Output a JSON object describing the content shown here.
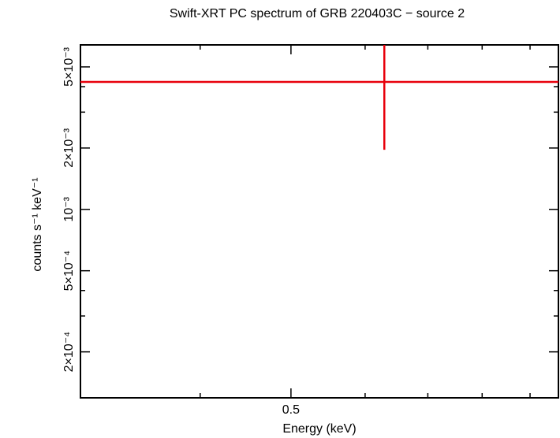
{
  "chart_data": {
    "type": "scatter",
    "title": "Swift-XRT PC spectrum of GRB 220403C − source 2",
    "x_label": "Energy (keV)",
    "y_label": "counts s⁻¹ keV⁻¹",
    "x_log": true,
    "y_log": true,
    "xlim": [
      0.298,
      0.965
    ],
    "ylim": [
      0.000119,
      0.00641
    ],
    "xticks": [
      0.5
    ],
    "xminor": [
      0.4,
      0.6,
      0.7,
      0.8,
      0.9
    ],
    "yticks": [
      {
        "value": 0.005,
        "label": "5×10⁻³"
      },
      {
        "value": 0.002,
        "label": "2×10⁻³"
      },
      {
        "value": 0.001,
        "label": "10⁻³"
      },
      {
        "value": 0.0005,
        "label": "5×10⁻⁴"
      },
      {
        "value": 0.0002,
        "label": "2×10⁻⁴"
      }
    ],
    "yminor": [
      0.004,
      0.003,
      0.0004,
      0.0003
    ],
    "series": [
      {
        "color": "#e8000b",
        "x": [
          0.629
        ],
        "x_low": [
          0.298
        ],
        "x_high": [
          0.965
        ],
        "values": [
          0.00422
        ],
        "y_low": [
          0.00196
        ],
        "y_high": [
          0.00648
        ]
      }
    ]
  }
}
